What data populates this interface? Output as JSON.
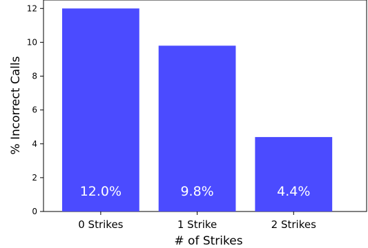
{
  "chart_data": {
    "type": "bar",
    "categories": [
      "0 Strikes",
      "1 Strike",
      "2 Strikes"
    ],
    "values": [
      12.0,
      9.8,
      4.4
    ],
    "data_labels": [
      "12.0%",
      "9.8%",
      "4.4%"
    ],
    "xlabel": "# of Strikes",
    "ylabel": "% Incorrect Calls",
    "ylim": [
      0,
      12.5
    ],
    "yticks": [
      0,
      2,
      4,
      6,
      8,
      10,
      12
    ],
    "grid": false,
    "bar_color": "#4b4bff"
  }
}
